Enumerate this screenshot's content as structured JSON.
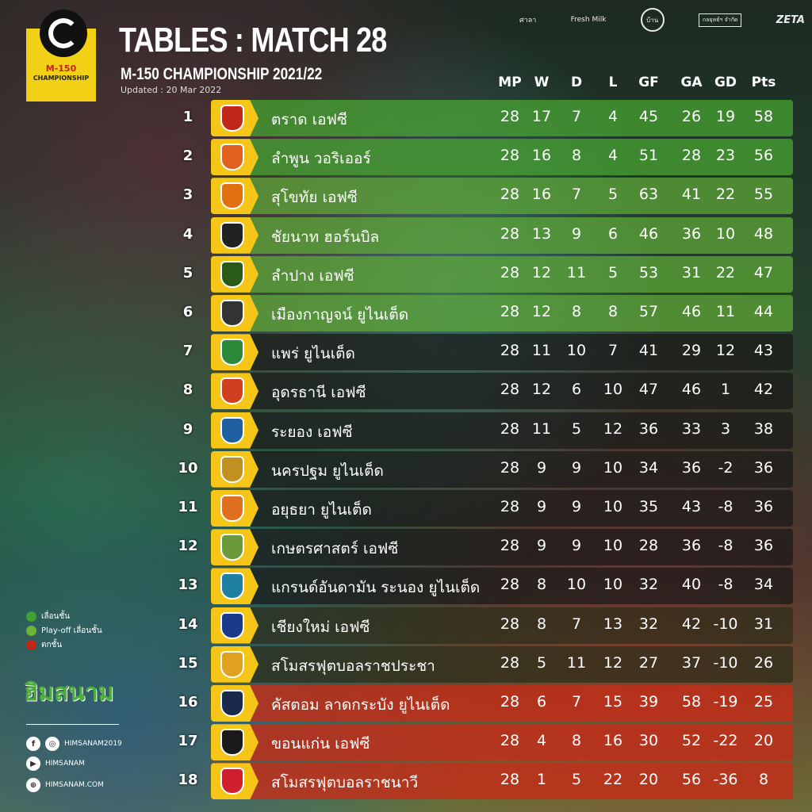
{
  "header": {
    "logo_text": "M-150 CHAMPIONSHIP",
    "logo_m150": "M-150",
    "logo_champ": "CHAMPIONSHIP",
    "title": "TABLES : MATCH 28",
    "subtitle": "M-150 CHAMPIONSHIP 2021/22",
    "updated": "Updated : 20 Mar 2022"
  },
  "sponsors": [
    "ศาลา",
    "Fresh Milk",
    "บ้าน",
    "กลยุทธ์ฯ จำกัด",
    "ZETA"
  ],
  "columns": [
    "MP",
    "W",
    "D",
    "L",
    "GF",
    "GA",
    "GD",
    "Pts"
  ],
  "zone_colors": {
    "promotion": "#3fa033",
    "playoff": "#6fb23a",
    "relegation": "#c0281a",
    "neutral": "#1e1e1e"
  },
  "rows": [
    {
      "pos": "1",
      "team": "ตราด เอฟซี",
      "stats": [
        "28",
        "17",
        "7",
        "4",
        "45",
        "26",
        "19",
        "58"
      ],
      "zone": "promotion"
    },
    {
      "pos": "2",
      "team": "ลำพูน วอริเออร์",
      "stats": [
        "28",
        "16",
        "8",
        "4",
        "51",
        "28",
        "23",
        "56"
      ],
      "zone": "promotion"
    },
    {
      "pos": "3",
      "team": "สุโขทัย เอฟซี",
      "stats": [
        "28",
        "16",
        "7",
        "5",
        "63",
        "41",
        "22",
        "55"
      ],
      "zone": "playoff"
    },
    {
      "pos": "4",
      "team": "ชัยนาท ฮอร์นบิล",
      "stats": [
        "28",
        "13",
        "9",
        "6",
        "46",
        "36",
        "10",
        "48"
      ],
      "zone": "playoff"
    },
    {
      "pos": "5",
      "team": "ลำปาง เอฟซี",
      "stats": [
        "28",
        "12",
        "11",
        "5",
        "53",
        "31",
        "22",
        "47"
      ],
      "zone": "playoff"
    },
    {
      "pos": "6",
      "team": "เมืองกาญจน์ ยูไนเต็ด",
      "stats": [
        "28",
        "12",
        "8",
        "8",
        "57",
        "46",
        "11",
        "44"
      ],
      "zone": "playoff"
    },
    {
      "pos": "7",
      "team": "แพร่ ยูไนเต็ด",
      "stats": [
        "28",
        "11",
        "10",
        "7",
        "41",
        "29",
        "12",
        "43"
      ],
      "zone": "neutral"
    },
    {
      "pos": "8",
      "team": "อุดรธานี เอฟซี",
      "stats": [
        "28",
        "12",
        "6",
        "10",
        "47",
        "46",
        "1",
        "42"
      ],
      "zone": "neutral"
    },
    {
      "pos": "9",
      "team": "ระยอง เอฟซี",
      "stats": [
        "28",
        "11",
        "5",
        "12",
        "36",
        "33",
        "3",
        "38"
      ],
      "zone": "neutral"
    },
    {
      "pos": "10",
      "team": "นครปฐม ยูไนเต็ด",
      "stats": [
        "28",
        "9",
        "9",
        "10",
        "34",
        "36",
        "-2",
        "36"
      ],
      "zone": "neutral"
    },
    {
      "pos": "11",
      "team": "อยุธยา ยูไนเต็ด",
      "stats": [
        "28",
        "9",
        "9",
        "10",
        "35",
        "43",
        "-8",
        "36"
      ],
      "zone": "neutral"
    },
    {
      "pos": "12",
      "team": "เกษตรศาสตร์ เอฟซี",
      "stats": [
        "28",
        "9",
        "9",
        "10",
        "28",
        "36",
        "-8",
        "36"
      ],
      "zone": "neutral"
    },
    {
      "pos": "13",
      "team": "แกรนด์อันดามัน ระนอง ยูไนเต็ด",
      "stats": [
        "28",
        "8",
        "10",
        "10",
        "32",
        "40",
        "-8",
        "34"
      ],
      "zone": "neutral"
    },
    {
      "pos": "14",
      "team": "เชียงใหม่ เอฟซี",
      "stats": [
        "28",
        "8",
        "7",
        "13",
        "32",
        "42",
        "-10",
        "31"
      ],
      "zone": "neutral"
    },
    {
      "pos": "15",
      "team": "สโมสรฟุตบอลราชประชา",
      "stats": [
        "28",
        "5",
        "11",
        "12",
        "27",
        "37",
        "-10",
        "26"
      ],
      "zone": "neutral"
    },
    {
      "pos": "16",
      "team": "คัสตอม ลาดกระบัง ยูไนเต็ด",
      "stats": [
        "28",
        "6",
        "7",
        "15",
        "39",
        "58",
        "-19",
        "25"
      ],
      "zone": "relegation"
    },
    {
      "pos": "17",
      "team": "ขอนแก่น เอฟซี",
      "stats": [
        "28",
        "4",
        "8",
        "16",
        "30",
        "52",
        "-22",
        "20"
      ],
      "zone": "relegation"
    },
    {
      "pos": "18",
      "team": "สโมสรฟุตบอลราชนาวี",
      "stats": [
        "28",
        "1",
        "5",
        "22",
        "20",
        "56",
        "-36",
        "8"
      ],
      "zone": "relegation"
    }
  ],
  "legend": [
    {
      "label": "เลื่อนชั้น",
      "color": "#3fa033"
    },
    {
      "label": "Play-off เลื่อนชั้น",
      "color": "#6fb23a"
    },
    {
      "label": "ตกชั้น",
      "color": "#c0281a"
    }
  ],
  "brand": "ฮิมสนาม",
  "social": {
    "facebook_instagram": "HIMSANAM2019",
    "youtube": "HIMSANAM",
    "website": "HIMSANAM.COM"
  }
}
